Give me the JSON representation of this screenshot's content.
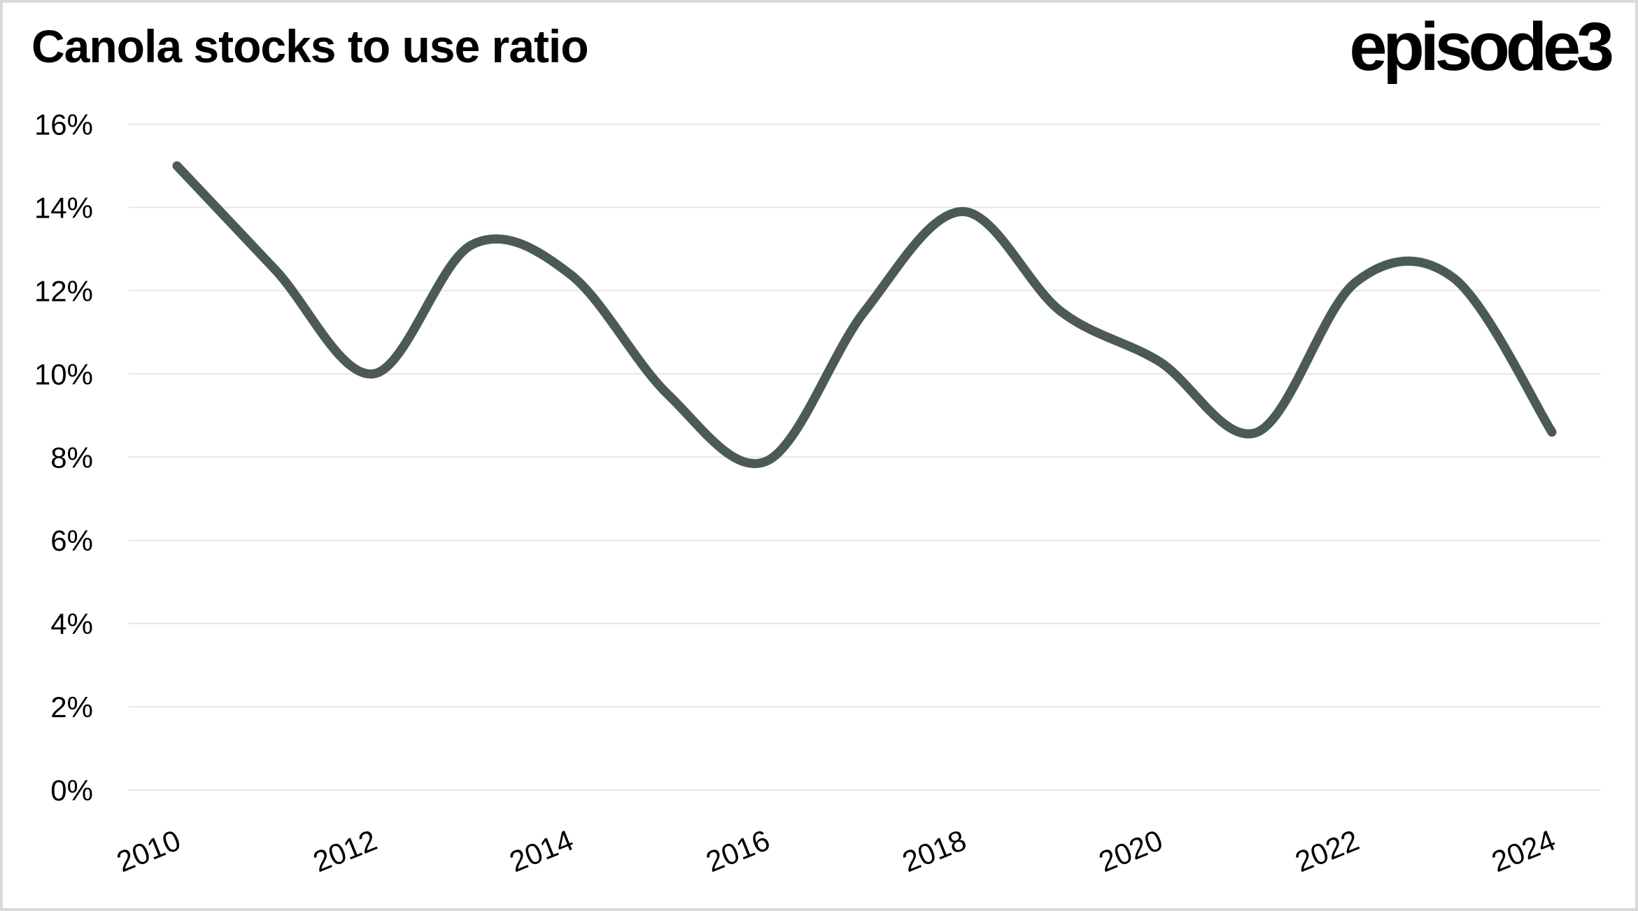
{
  "header": {
    "title": "Canola stocks to use ratio",
    "logo_text": "episode3"
  },
  "chart_data": {
    "type": "line",
    "title": "Canola stocks to use ratio",
    "x": [
      2010,
      2011,
      2012,
      2013,
      2014,
      2015,
      2016,
      2017,
      2018,
      2019,
      2020,
      2021,
      2022,
      2023,
      2024
    ],
    "series": [
      {
        "name": "Canola stocks to use ratio",
        "values": [
          15.0,
          12.5,
          10.0,
          13.1,
          12.4,
          9.5,
          7.9,
          11.5,
          13.9,
          11.5,
          10.3,
          8.6,
          12.2,
          12.3,
          8.6
        ]
      }
    ],
    "xlabel": "",
    "ylabel": "",
    "ylim": [
      0,
      16
    ],
    "ytick_values": [
      0,
      2,
      4,
      6,
      8,
      10,
      12,
      14,
      16
    ],
    "ytick_labels": [
      "0%",
      "2%",
      "4%",
      "6%",
      "8%",
      "10%",
      "12%",
      "14%",
      "16%"
    ],
    "xtick_values": [
      2010,
      2012,
      2014,
      2016,
      2018,
      2020,
      2022,
      2024
    ],
    "xtick_labels": [
      "2010",
      "2012",
      "2014",
      "2016",
      "2018",
      "2020",
      "2022",
      "2024"
    ],
    "grid": "horizontal",
    "legend": "none",
    "smooth": true,
    "line_color": "#4b5a58",
    "grid_color": "#e6e6e6",
    "label_color": "#000000",
    "border_color": "#d9d9d9",
    "background": "#ffffff"
  }
}
